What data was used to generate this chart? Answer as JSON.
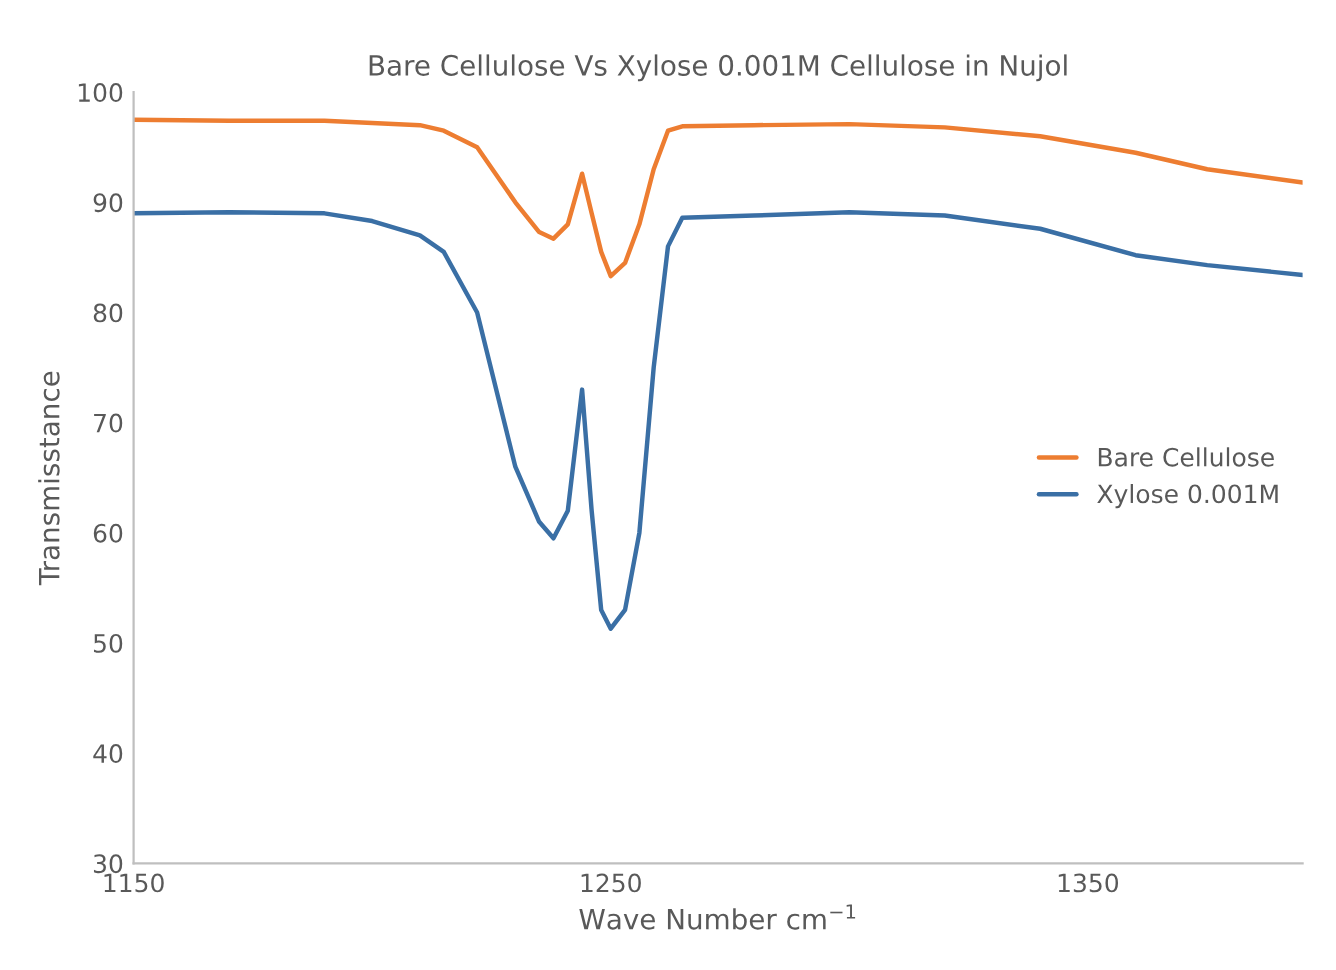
{
  "chart_data": {
    "type": "line",
    "title": "Bare Cellulose Vs Xylose 0.001M Cellulose in Nujol",
    "xlabel": "Wave Number cm$^{−1}$",
    "ylabel": "Transmisstance",
    "x": [
      1150,
      1170,
      1190,
      1200,
      1210,
      1215,
      1222,
      1230,
      1235,
      1238,
      1241,
      1244,
      1246,
      1248,
      1250,
      1253,
      1256,
      1259,
      1262,
      1265,
      1280,
      1300,
      1320,
      1340,
      1360,
      1375,
      1395
    ],
    "series": [
      {
        "name": "Bare Cellulose",
        "color": "#ed7d31",
        "values": [
          97.5,
          97.4,
          97.4,
          97.2,
          97.0,
          96.5,
          95.0,
          90.0,
          87.3,
          86.7,
          88.0,
          92.6,
          89.0,
          85.5,
          83.3,
          84.5,
          88.0,
          93.0,
          96.5,
          96.9,
          97.0,
          97.1,
          96.8,
          96.0,
          94.5,
          93.0,
          91.8
        ]
      },
      {
        "name": "Xylose 0.001M",
        "color": "#3a6fa5",
        "values": [
          89.0,
          89.1,
          89.0,
          88.3,
          87.0,
          85.5,
          80.0,
          66.0,
          61.0,
          59.5,
          62.0,
          73.0,
          62.0,
          53.0,
          51.3,
          53.0,
          60.0,
          75.0,
          86.0,
          88.6,
          88.8,
          89.1,
          88.8,
          87.6,
          85.2,
          84.3,
          83.4
        ]
      }
    ],
    "xlim": [
      1150,
      1395
    ],
    "xticks": [
      1150,
      1250,
      1350
    ],
    "ylim": [
      30,
      100
    ],
    "yticks": [
      30,
      40,
      50,
      60,
      70,
      80,
      90,
      100
    ],
    "grid": false,
    "legend": "right",
    "marker": "none",
    "line_style": "solid"
  }
}
